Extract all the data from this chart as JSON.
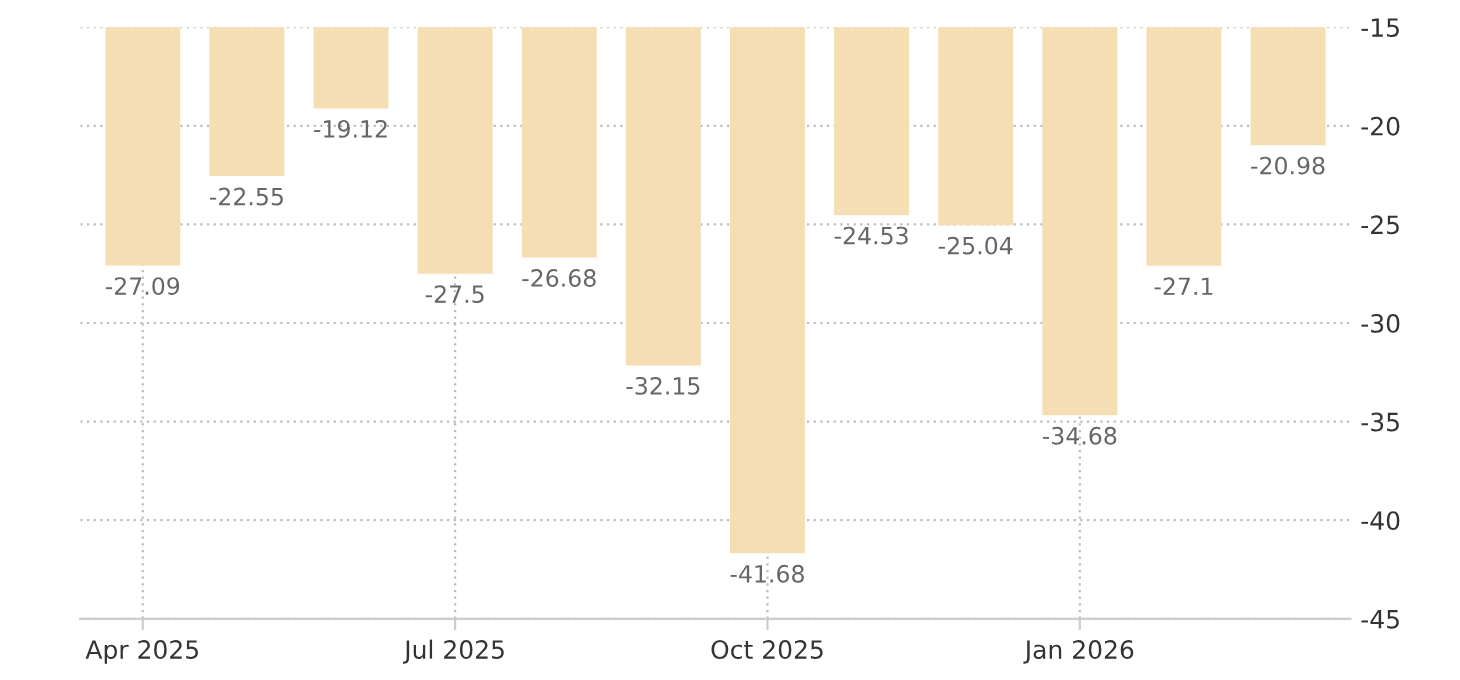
{
  "chart_data": {
    "type": "bar",
    "categories": [
      "Apr 2025",
      null,
      null,
      "Jul 2025",
      null,
      null,
      "Oct 2025",
      null,
      null,
      "Jan 2026",
      null,
      null
    ],
    "values": [
      -27.09,
      -22.55,
      -19.12,
      -27.5,
      -26.68,
      -32.15,
      -41.68,
      -24.53,
      -25.04,
      -34.68,
      -27.1,
      -20.98
    ],
    "color": "#f5deb3",
    "ylim": [
      -45,
      -15
    ],
    "yticks": [
      -45,
      -40,
      -35,
      -30,
      -25,
      -20,
      -15
    ],
    "grid": true,
    "data_labels": true
  }
}
